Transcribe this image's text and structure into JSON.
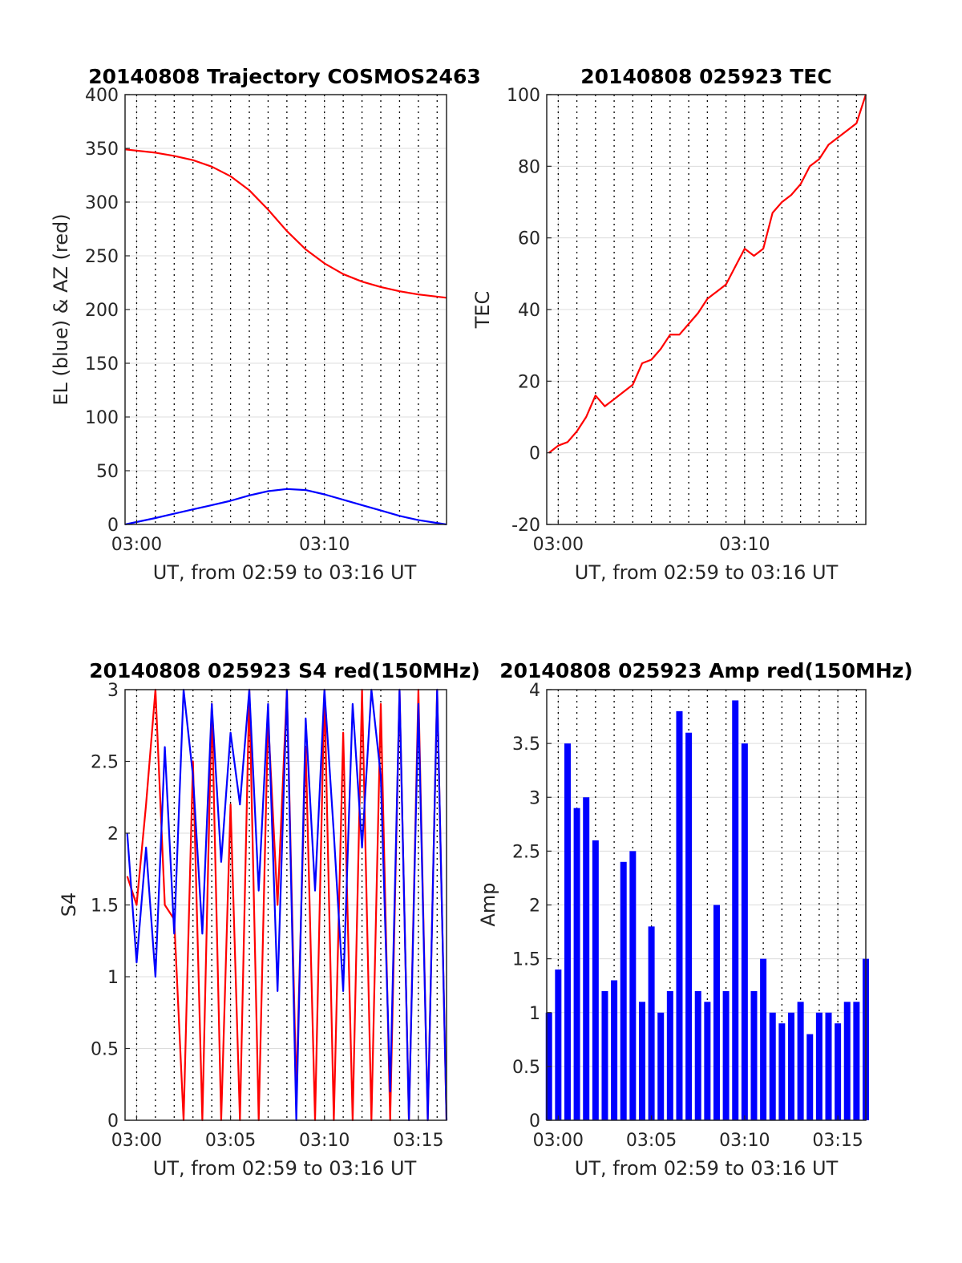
{
  "colors": {
    "red": "#ff0000",
    "blue": "#0000ff",
    "grid": "#dcdcdc",
    "axis": "#262626"
  },
  "chart_data": [
    {
      "type": "line",
      "title": "20140808 Trajectory COSMOS2463",
      "xlabel": "UT, from 02:59 to 03:16 UT",
      "ylabel": "EL (blue) & AZ (red)",
      "xlim": [
        "02:59:23",
        "03:16:30"
      ],
      "ylim": [
        0,
        400
      ],
      "yticks": [
        0,
        50,
        100,
        150,
        200,
        250,
        300,
        350,
        400
      ],
      "yticklabels": [
        "0",
        "50",
        "100",
        "150",
        "200",
        "250",
        "300",
        "350",
        "400"
      ],
      "xticks": [
        "03:00",
        "03:10"
      ],
      "minor_dotted_grid_minutes": 1,
      "grid": true,
      "series": [
        {
          "color": "red",
          "x": [
            "02:59:23",
            "03:01:00",
            "03:02:00",
            "03:03:00",
            "03:04:00",
            "03:05:00",
            "03:06:00",
            "03:07:00",
            "03:08:00",
            "03:09:00",
            "03:10:00",
            "03:11:00",
            "03:12:00",
            "03:13:00",
            "03:14:00",
            "03:15:00",
            "03:16:30"
          ],
          "values": [
            349,
            346,
            343,
            339,
            333,
            324,
            311,
            293,
            273,
            256,
            243,
            233,
            226,
            221,
            217,
            214,
            211
          ]
        },
        {
          "color": "blue",
          "x": [
            "02:59:23",
            "03:01:00",
            "03:02:00",
            "03:03:00",
            "03:04:00",
            "03:05:00",
            "03:06:00",
            "03:07:00",
            "03:08:00",
            "03:09:00",
            "03:10:00",
            "03:11:00",
            "03:12:00",
            "03:13:00",
            "03:14:00",
            "03:15:00",
            "03:16:30"
          ],
          "values": [
            0,
            6,
            10,
            14,
            18,
            22,
            27,
            31,
            33,
            32,
            28,
            23,
            18,
            13,
            8,
            4,
            0
          ]
        }
      ]
    },
    {
      "type": "line",
      "title": "20140808 025923 TEC",
      "xlabel": "UT, from 02:59 to 03:16 UT",
      "ylabel": "TEC",
      "xlim": [
        "02:59:23",
        "03:16:30"
      ],
      "ylim": [
        -20,
        100
      ],
      "yticks": [
        -20,
        0,
        20,
        40,
        60,
        80,
        100
      ],
      "yticklabels": [
        "-20",
        "0",
        "20",
        "40",
        "60",
        "80",
        "100"
      ],
      "xticks": [
        "03:00",
        "03:10"
      ],
      "minor_dotted_grid_minutes": 1,
      "grid": true,
      "series": [
        {
          "color": "red",
          "x": [
            "02:59:30",
            "03:00:00",
            "03:00:30",
            "03:01:00",
            "03:01:30",
            "03:02:00",
            "03:02:30",
            "03:03:00",
            "03:03:30",
            "03:04:00",
            "03:04:30",
            "03:05:00",
            "03:05:30",
            "03:06:00",
            "03:06:30",
            "03:07:00",
            "03:07:30",
            "03:08:00",
            "03:08:30",
            "03:09:00",
            "03:09:30",
            "03:10:00",
            "03:10:30",
            "03:11:00",
            "03:11:30",
            "03:12:00",
            "03:12:30",
            "03:13:00",
            "03:13:30",
            "03:14:00",
            "03:14:30",
            "03:15:00",
            "03:15:30",
            "03:16:00",
            "03:16:30"
          ],
          "values": [
            0,
            2,
            3,
            6,
            10,
            16,
            13,
            15,
            17,
            19,
            25,
            26,
            29,
            33,
            33,
            36,
            39,
            43,
            45,
            47,
            52,
            57,
            55,
            57,
            67,
            70,
            72,
            75,
            80,
            82,
            86,
            88,
            90,
            92,
            100
          ]
        }
      ]
    },
    {
      "type": "line",
      "title": "20140808 025923 S4 red(150MHz)",
      "xlabel": "UT, from 02:59 to 03:16 UT",
      "ylabel": "S4",
      "xlim": [
        "02:59:23",
        "03:16:30"
      ],
      "ylim": [
        0,
        3
      ],
      "yticks": [
        0,
        0.5,
        1,
        1.5,
        2,
        2.5,
        3
      ],
      "yticklabels": [
        "0",
        "0.5",
        "1",
        "1.5",
        "2",
        "2.5",
        "3"
      ],
      "xticks": [
        "03:00",
        "03:05",
        "03:10",
        "03:15"
      ],
      "minor_dotted_grid_minutes": 1,
      "grid": true,
      "series": [
        {
          "color": "red",
          "x": [
            "02:59:30",
            "03:00:00",
            "03:00:30",
            "03:01:00",
            "03:01:30",
            "03:02:00",
            "03:02:30",
            "03:03:00",
            "03:03:30",
            "03:04:00",
            "03:04:30",
            "03:05:00",
            "03:05:30",
            "03:06:00",
            "03:06:30",
            "03:07:00",
            "03:07:30",
            "03:08:00",
            "03:08:30",
            "03:09:00",
            "03:09:30",
            "03:10:00",
            "03:10:30",
            "03:11:00",
            "03:11:30",
            "03:12:00",
            "03:12:30",
            "03:13:00",
            "03:13:30",
            "03:14:00",
            "03:14:30",
            "03:15:00",
            "03:15:30",
            "03:16:00",
            "03:16:30"
          ],
          "values": [
            1.7,
            1.5,
            2.2,
            3.0,
            1.5,
            1.4,
            0.0,
            2.5,
            0.0,
            2.9,
            0.0,
            2.2,
            0.0,
            3.0,
            0.0,
            2.8,
            1.5,
            3.0,
            0.2,
            2.6,
            0.0,
            3.0,
            0.0,
            2.7,
            0.0,
            3.0,
            0.0,
            2.9,
            0.0,
            3.0,
            0.0,
            3.0,
            0.0,
            3.0,
            0.0
          ]
        },
        {
          "color": "blue",
          "x": [
            "02:59:30",
            "03:00:00",
            "03:00:30",
            "03:01:00",
            "03:01:30",
            "03:02:00",
            "03:02:30",
            "03:03:00",
            "03:03:30",
            "03:04:00",
            "03:04:30",
            "03:05:00",
            "03:05:30",
            "03:06:00",
            "03:06:30",
            "03:07:00",
            "03:07:30",
            "03:08:00",
            "03:08:30",
            "03:09:00",
            "03:09:30",
            "03:10:00",
            "03:10:30",
            "03:11:00",
            "03:11:30",
            "03:12:00",
            "03:12:30",
            "03:13:00",
            "03:13:30",
            "03:14:00",
            "03:14:30",
            "03:15:00",
            "03:15:30",
            "03:16:00",
            "03:16:30"
          ],
          "values": [
            2.0,
            1.1,
            1.9,
            1.0,
            2.6,
            1.3,
            3.0,
            2.4,
            1.3,
            2.9,
            1.8,
            2.7,
            2.2,
            3.0,
            1.6,
            2.9,
            0.9,
            3.0,
            0.0,
            2.8,
            1.6,
            3.0,
            2.0,
            0.9,
            2.9,
            1.9,
            3.0,
            2.4,
            0.2,
            3.0,
            0.0,
            2.9,
            0.0,
            3.0,
            0.0
          ]
        }
      ]
    },
    {
      "type": "bar",
      "title": "20140808 025923 Amp red(150MHz)",
      "xlabel": "UT, from 02:59 to 03:16 UT",
      "ylabel": "Amp",
      "xlim": [
        "02:59:23",
        "03:16:30"
      ],
      "ylim": [
        0,
        4
      ],
      "yticks": [
        0,
        0.5,
        1,
        1.5,
        2,
        2.5,
        3,
        3.5,
        4
      ],
      "yticklabels": [
        "0",
        "0.5",
        "1",
        "1.5",
        "2",
        "2.5",
        "3",
        "3.5",
        "4"
      ],
      "xticks": [
        "03:00",
        "03:05",
        "03:10",
        "03:15"
      ],
      "minor_dotted_grid_minutes": 1,
      "grid": true,
      "series": [
        {
          "color": "blue",
          "x": [
            "02:59:30",
            "03:00:00",
            "03:00:30",
            "03:01:00",
            "03:01:30",
            "03:02:00",
            "03:02:30",
            "03:03:00",
            "03:03:30",
            "03:04:00",
            "03:04:30",
            "03:05:00",
            "03:05:30",
            "03:06:00",
            "03:06:30",
            "03:07:00",
            "03:07:30",
            "03:08:00",
            "03:08:30",
            "03:09:00",
            "03:09:30",
            "03:10:00",
            "03:10:30",
            "03:11:00",
            "03:11:30",
            "03:12:00",
            "03:12:30",
            "03:13:00",
            "03:13:30",
            "03:14:00",
            "03:14:30",
            "03:15:00",
            "03:15:30",
            "03:16:00",
            "03:16:30"
          ],
          "values": [
            1.0,
            1.4,
            3.5,
            2.9,
            3.0,
            2.6,
            1.2,
            1.3,
            2.4,
            2.5,
            1.1,
            1.8,
            1.0,
            1.2,
            3.8,
            3.6,
            1.2,
            1.1,
            2.0,
            1.2,
            3.9,
            3.5,
            1.2,
            1.5,
            1.0,
            0.9,
            1.0,
            1.1,
            0.8,
            1.0,
            1.0,
            0.9,
            1.1,
            1.1,
            1.5
          ]
        }
      ]
    }
  ]
}
